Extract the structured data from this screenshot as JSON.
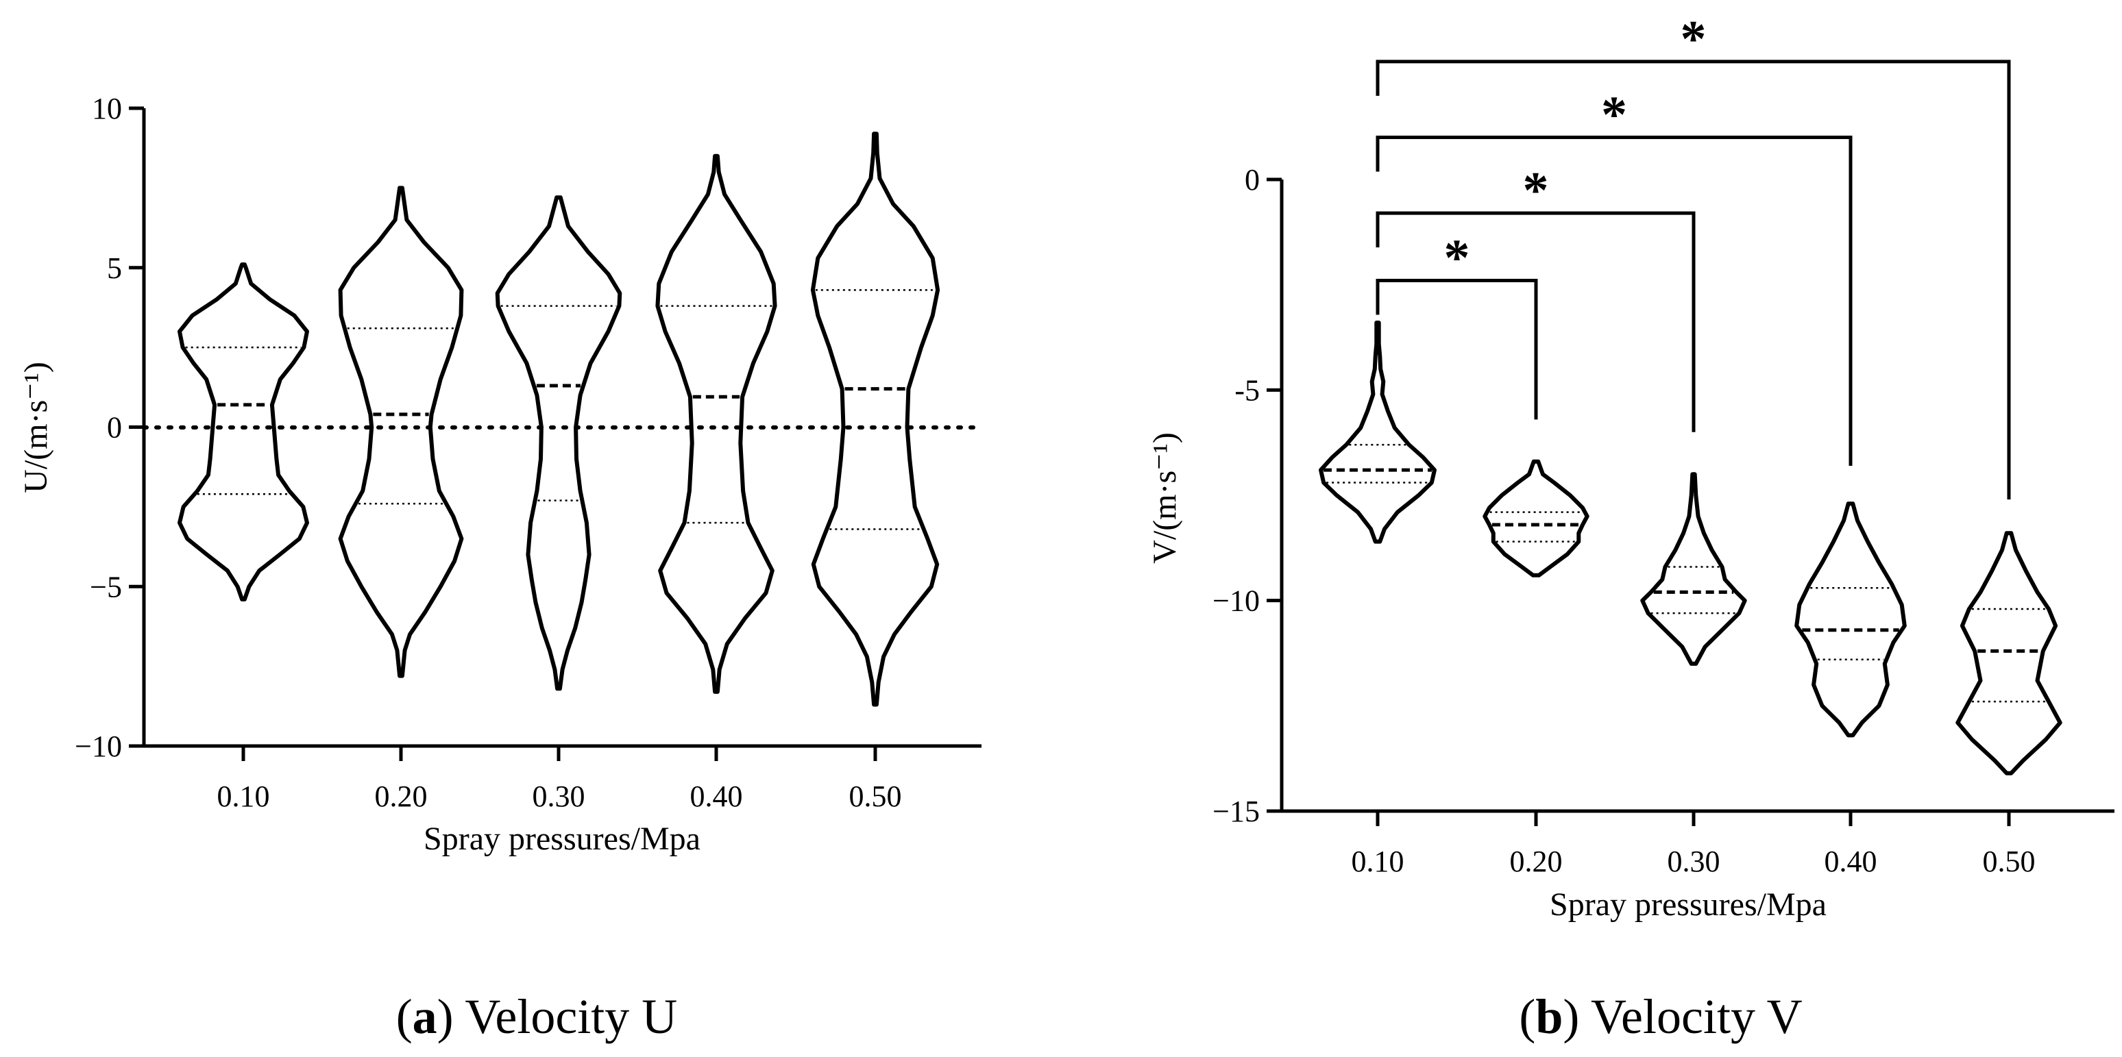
{
  "chart_data": [
    {
      "type": "violin",
      "xlabel": "Spray pressures/Mpa",
      "ylabel": "U/(m·s⁻¹)",
      "categories": [
        "0.10",
        "0.20",
        "0.30",
        "0.40",
        "0.50"
      ],
      "ylim": [
        -10,
        10
      ],
      "yticks": [
        "10",
        "5",
        "0",
        "−5",
        "−10"
      ],
      "yticks_values": [
        10,
        5,
        0,
        -5,
        -10
      ],
      "reference_line": 0,
      "caption": {
        "prefix": "(",
        "letter": "a",
        "suffix": ") Velocity U"
      },
      "violins": [
        {
          "category": "0.10",
          "median": 0.7,
          "q1": -2.1,
          "q3": 2.5,
          "profile": [
            [
              -5.4,
              0.02
            ],
            [
              -5.0,
              0.09
            ],
            [
              -4.5,
              0.25
            ],
            [
              -4.0,
              0.57
            ],
            [
              -3.5,
              0.88
            ],
            [
              -3.0,
              1.0
            ],
            [
              -2.5,
              0.94
            ],
            [
              -2.0,
              0.72
            ],
            [
              -1.5,
              0.55
            ],
            [
              -1.0,
              0.52
            ],
            [
              0.0,
              0.48
            ],
            [
              0.7,
              0.45
            ],
            [
              1.5,
              0.58
            ],
            [
              2.0,
              0.78
            ],
            [
              2.5,
              0.95
            ],
            [
              3.0,
              1.0
            ],
            [
              3.5,
              0.8
            ],
            [
              4.0,
              0.42
            ],
            [
              4.5,
              0.12
            ],
            [
              5.0,
              0.04
            ],
            [
              5.1,
              0.02
            ]
          ]
        },
        {
          "category": "0.20",
          "median": 0.4,
          "q1": -2.4,
          "q3": 3.1,
          "profile": [
            [
              -7.8,
              0.02
            ],
            [
              -7.0,
              0.06
            ],
            [
              -6.5,
              0.14
            ],
            [
              -5.8,
              0.38
            ],
            [
              -5.0,
              0.62
            ],
            [
              -4.2,
              0.84
            ],
            [
              -3.5,
              0.95
            ],
            [
              -2.8,
              0.82
            ],
            [
              -2.0,
              0.6
            ],
            [
              -1.0,
              0.5
            ],
            [
              0.0,
              0.46
            ],
            [
              0.4,
              0.48
            ],
            [
              1.5,
              0.62
            ],
            [
              2.5,
              0.8
            ],
            [
              3.5,
              0.94
            ],
            [
              4.3,
              0.95
            ],
            [
              5.0,
              0.74
            ],
            [
              5.8,
              0.36
            ],
            [
              6.5,
              0.09
            ],
            [
              7.5,
              0.02
            ]
          ]
        },
        {
          "category": "0.30",
          "median": 1.3,
          "q1": -2.3,
          "q3": 3.8,
          "profile": [
            [
              -8.2,
              0.02
            ],
            [
              -7.6,
              0.06
            ],
            [
              -7.0,
              0.14
            ],
            [
              -6.3,
              0.26
            ],
            [
              -5.5,
              0.36
            ],
            [
              -4.8,
              0.42
            ],
            [
              -4.0,
              0.48
            ],
            [
              -3.0,
              0.44
            ],
            [
              -2.0,
              0.34
            ],
            [
              -1.0,
              0.28
            ],
            [
              0.0,
              0.27
            ],
            [
              1.0,
              0.34
            ],
            [
              2.0,
              0.5
            ],
            [
              3.0,
              0.78
            ],
            [
              3.8,
              0.95
            ],
            [
              4.2,
              0.96
            ],
            [
              4.8,
              0.78
            ],
            [
              5.5,
              0.46
            ],
            [
              6.3,
              0.15
            ],
            [
              7.2,
              0.03
            ]
          ]
        },
        {
          "category": "0.40",
          "median": 0.95,
          "q1": -3.0,
          "q3": 3.8,
          "profile": [
            [
              -8.3,
              0.02
            ],
            [
              -7.6,
              0.05
            ],
            [
              -6.8,
              0.17
            ],
            [
              -6.0,
              0.45
            ],
            [
              -5.2,
              0.78
            ],
            [
              -4.5,
              0.88
            ],
            [
              -3.8,
              0.7
            ],
            [
              -3.0,
              0.5
            ],
            [
              -2.0,
              0.42
            ],
            [
              -0.5,
              0.38
            ],
            [
              0.95,
              0.41
            ],
            [
              2.0,
              0.58
            ],
            [
              3.0,
              0.8
            ],
            [
              3.8,
              0.92
            ],
            [
              4.5,
              0.9
            ],
            [
              5.5,
              0.7
            ],
            [
              6.5,
              0.38
            ],
            [
              7.3,
              0.13
            ],
            [
              8.0,
              0.04
            ],
            [
              8.5,
              0.02
            ]
          ]
        },
        {
          "category": "0.50",
          "median": 1.2,
          "q1": -3.2,
          "q3": 4.3,
          "profile": [
            [
              -8.7,
              0.02
            ],
            [
              -8.0,
              0.05
            ],
            [
              -7.2,
              0.13
            ],
            [
              -6.5,
              0.3
            ],
            [
              -5.8,
              0.56
            ],
            [
              -5.0,
              0.88
            ],
            [
              -4.3,
              0.97
            ],
            [
              -3.5,
              0.82
            ],
            [
              -2.5,
              0.62
            ],
            [
              -1.0,
              0.54
            ],
            [
              0.0,
              0.5
            ],
            [
              1.2,
              0.52
            ],
            [
              2.5,
              0.72
            ],
            [
              3.5,
              0.9
            ],
            [
              4.3,
              0.98
            ],
            [
              5.3,
              0.9
            ],
            [
              6.3,
              0.6
            ],
            [
              7.0,
              0.28
            ],
            [
              7.8,
              0.07
            ],
            [
              8.6,
              0.03
            ],
            [
              9.2,
              0.02
            ]
          ]
        }
      ]
    },
    {
      "type": "violin",
      "xlabel": "Spray pressures/Mpa",
      "ylabel": "V/(m·s⁻¹)",
      "categories": [
        "0.10",
        "0.20",
        "0.30",
        "0.40",
        "0.50"
      ],
      "ylim": [
        -15,
        0
      ],
      "yticks": [
        "0",
        "-5",
        "−10",
        "−15"
      ],
      "yticks_values": [
        0,
        -5,
        -10,
        -15
      ],
      "caption": {
        "prefix": "(",
        "letter": "b",
        "suffix": ") Velocity V"
      },
      "significance": [
        {
          "from": "0.10",
          "to": "0.20",
          "label": "*",
          "bracket_y": -2.4,
          "tip_y": -5.7
        },
        {
          "from": "0.10",
          "to": "0.30",
          "label": "*",
          "bracket_y": -0.8,
          "tip_y": -6.0
        },
        {
          "from": "0.10",
          "to": "0.40",
          "label": "*",
          "bracket_y": 1.0,
          "tip_y": -6.8
        },
        {
          "from": "0.10",
          "to": "0.50",
          "label": "*",
          "bracket_y": 2.8,
          "tip_y": -7.6
        }
      ],
      "violins": [
        {
          "category": "0.10",
          "median": -6.9,
          "q1": -7.2,
          "q3": -6.3,
          "profile": [
            [
              -8.6,
              0.04
            ],
            [
              -8.3,
              0.12
            ],
            [
              -7.9,
              0.35
            ],
            [
              -7.5,
              0.72
            ],
            [
              -7.2,
              0.95
            ],
            [
              -6.9,
              1.0
            ],
            [
              -6.6,
              0.8
            ],
            [
              -6.3,
              0.55
            ],
            [
              -5.9,
              0.3
            ],
            [
              -5.5,
              0.18
            ],
            [
              -5.1,
              0.08
            ],
            [
              -4.8,
              0.1
            ],
            [
              -4.5,
              0.05
            ],
            [
              -4.2,
              0.04
            ],
            [
              -3.9,
              0.02
            ],
            [
              -3.4,
              0.02
            ]
          ]
        },
        {
          "category": "0.20",
          "median": -8.2,
          "q1": -8.6,
          "q3": -7.9,
          "profile": [
            [
              -9.4,
              0.05
            ],
            [
              -9.2,
              0.25
            ],
            [
              -8.9,
              0.55
            ],
            [
              -8.6,
              0.75
            ],
            [
              -8.4,
              0.75
            ],
            [
              -8.2,
              0.82
            ],
            [
              -8.0,
              0.9
            ],
            [
              -7.8,
              0.82
            ],
            [
              -7.5,
              0.6
            ],
            [
              -7.2,
              0.32
            ],
            [
              -7.0,
              0.12
            ],
            [
              -6.7,
              0.04
            ]
          ]
        },
        {
          "category": "0.30",
          "median": -9.8,
          "q1": -10.3,
          "q3": -9.2,
          "profile": [
            [
              -11.5,
              0.04
            ],
            [
              -11.1,
              0.2
            ],
            [
              -10.7,
              0.5
            ],
            [
              -10.3,
              0.8
            ],
            [
              -10.0,
              0.9
            ],
            [
              -9.8,
              0.75
            ],
            [
              -9.5,
              0.55
            ],
            [
              -9.2,
              0.5
            ],
            [
              -8.8,
              0.32
            ],
            [
              -8.4,
              0.18
            ],
            [
              -8.0,
              0.08
            ],
            [
              -7.5,
              0.04
            ],
            [
              -7.0,
              0.02
            ]
          ]
        },
        {
          "category": "0.40",
          "median": -10.7,
          "q1": -11.4,
          "q3": -9.7,
          "profile": [
            [
              -13.2,
              0.04
            ],
            [
              -12.9,
              0.2
            ],
            [
              -12.5,
              0.5
            ],
            [
              -12.0,
              0.65
            ],
            [
              -11.5,
              0.6
            ],
            [
              -11.0,
              0.75
            ],
            [
              -10.6,
              0.95
            ],
            [
              -10.1,
              0.9
            ],
            [
              -9.6,
              0.72
            ],
            [
              -9.1,
              0.5
            ],
            [
              -8.6,
              0.3
            ],
            [
              -8.1,
              0.12
            ],
            [
              -7.7,
              0.04
            ]
          ]
        },
        {
          "category": "0.50",
          "median": -11.2,
          "q1": -12.4,
          "q3": -10.2,
          "profile": [
            [
              -14.1,
              0.04
            ],
            [
              -13.8,
              0.25
            ],
            [
              -13.3,
              0.65
            ],
            [
              -12.9,
              0.9
            ],
            [
              -12.4,
              0.7
            ],
            [
              -11.9,
              0.5
            ],
            [
              -11.2,
              0.6
            ],
            [
              -10.6,
              0.82
            ],
            [
              -10.2,
              0.7
            ],
            [
              -9.8,
              0.5
            ],
            [
              -9.3,
              0.3
            ],
            [
              -8.8,
              0.12
            ],
            [
              -8.4,
              0.04
            ]
          ]
        }
      ]
    }
  ]
}
